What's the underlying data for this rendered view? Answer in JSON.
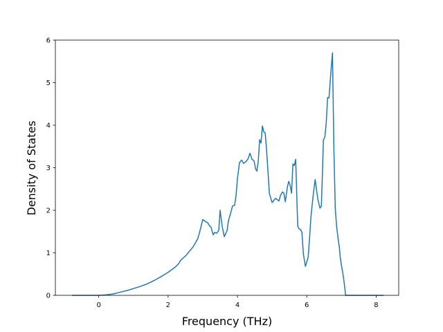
{
  "chart_data": {
    "type": "line",
    "xlabel": "Frequency (THz)",
    "ylabel": "Density of States",
    "xlim": [
      -1.25,
      8.65
    ],
    "ylim": [
      0,
      6
    ],
    "xticks": [
      0,
      2,
      4,
      6,
      8
    ],
    "yticks": [
      0,
      1,
      2,
      3,
      4,
      5,
      6
    ],
    "grid": false,
    "legend": "none",
    "line_color": "#1f77b4",
    "series": [
      {
        "x": [
          -0.77,
          0.0,
          0.2,
          0.4,
          0.6,
          0.8,
          1.0,
          1.2,
          1.4,
          1.6,
          1.8,
          2.0,
          2.2,
          2.3,
          2.36,
          2.44,
          2.52,
          2.6,
          2.66,
          2.72,
          2.78,
          2.82,
          2.86,
          2.92,
          3.0,
          3.04,
          3.1,
          3.14,
          3.2,
          3.24,
          3.3,
          3.34,
          3.4,
          3.46,
          3.5,
          3.56,
          3.62,
          3.7,
          3.74,
          3.8,
          3.86,
          3.92,
          3.96,
          4.0,
          4.06,
          4.12,
          4.18,
          4.24,
          4.3,
          4.36,
          4.42,
          4.48,
          4.52,
          4.56,
          4.6,
          4.64,
          4.68,
          4.72,
          4.76,
          4.8,
          4.84,
          4.88,
          4.92,
          5.0,
          5.1,
          5.2,
          5.24,
          5.3,
          5.34,
          5.38,
          5.44,
          5.48,
          5.52,
          5.56,
          5.6,
          5.64,
          5.68,
          5.72,
          5.74,
          5.78,
          5.82,
          5.86,
          5.9,
          5.96,
          6.04,
          6.08,
          6.12,
          6.18,
          6.24,
          6.32,
          6.38,
          6.42,
          6.44,
          6.48,
          6.52,
          6.56,
          6.6,
          6.64,
          6.7,
          6.74,
          6.78,
          6.82,
          6.86,
          6.9,
          6.94,
          6.96,
          7.0,
          7.04,
          7.08,
          7.12,
          7.16,
          7.22,
          7.28,
          7.34,
          7.4,
          7.44,
          7.48,
          7.52,
          7.6,
          7.8,
          8.0,
          8.22
        ],
        "y": [
          0.0,
          0.0,
          0.01,
          0.03,
          0.07,
          0.11,
          0.16,
          0.21,
          0.27,
          0.35,
          0.44,
          0.54,
          0.66,
          0.74,
          0.82,
          0.88,
          0.94,
          1.02,
          1.08,
          1.14,
          1.22,
          1.28,
          1.34,
          1.52,
          1.78,
          1.76,
          1.72,
          1.71,
          1.63,
          1.6,
          1.42,
          1.48,
          1.46,
          1.52,
          2.0,
          1.62,
          1.38,
          1.52,
          1.75,
          1.92,
          2.1,
          2.12,
          2.35,
          2.75,
          3.12,
          3.18,
          3.1,
          3.14,
          3.2,
          3.34,
          3.2,
          3.16,
          2.98,
          2.92,
          3.15,
          3.66,
          3.58,
          3.98,
          3.84,
          3.82,
          3.42,
          2.92,
          2.4,
          2.18,
          2.28,
          2.22,
          2.35,
          2.43,
          2.4,
          2.2,
          2.55,
          2.68,
          2.58,
          2.4,
          3.09,
          3.05,
          3.2,
          2.1,
          1.62,
          1.56,
          1.55,
          1.48,
          0.98,
          0.68,
          0.9,
          1.35,
          1.85,
          2.32,
          2.72,
          2.25,
          2.05,
          2.1,
          2.6,
          3.65,
          3.72,
          4.05,
          4.65,
          4.64,
          5.3,
          5.7,
          3.5,
          2.05,
          1.62,
          1.35,
          1.12,
          0.92,
          0.7,
          0.52,
          0.28,
          0.0,
          0.0,
          0.0,
          0.0,
          0.0,
          0.0,
          0.0,
          0.0,
          0.0,
          0.0,
          0.0,
          0.0,
          0.0
        ]
      }
    ]
  }
}
